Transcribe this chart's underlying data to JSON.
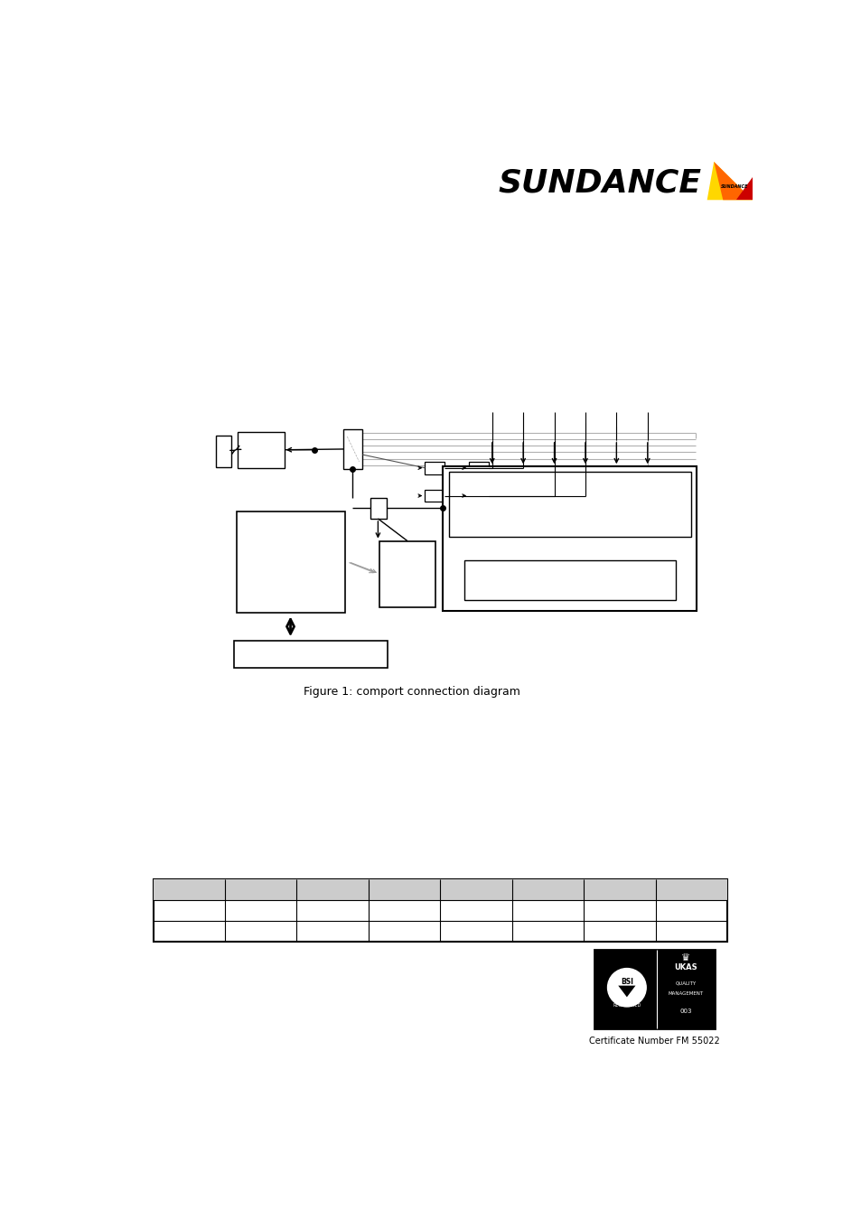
{
  "bg_color": "#ffffff",
  "figure_caption": "Figure 1: comport connection diagram",
  "cert_text": "Certificate Number FM 55022",
  "sundance_text": "SUNDANCE",
  "logo_small_text": "SUNDANCE",
  "table_cols": 8,
  "table_rows": 3,
  "table_header_color": "#d0d0d0",
  "table_row_color": "#ffffff",
  "table_border_color": "#000000"
}
